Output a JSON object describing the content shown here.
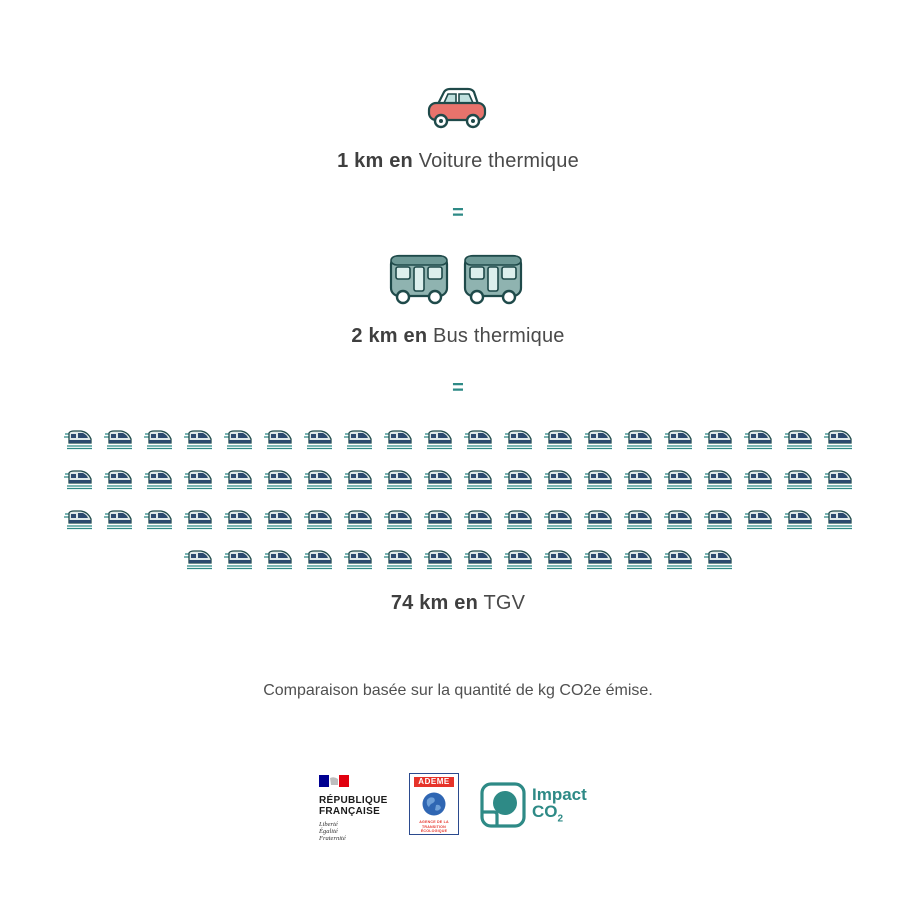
{
  "comparisons": [
    {
      "quantity": "1 km en",
      "mode": "Voiture thermique",
      "icon": "car-icon",
      "count": 1
    },
    {
      "quantity": "2 km en",
      "mode": "Bus thermique",
      "icon": "bus-icon",
      "count": 2
    },
    {
      "quantity": "74 km en",
      "mode": "TGV",
      "icon": "tgv-train-icon",
      "count": 74
    }
  ],
  "equals_sign": "=",
  "footnote": "Comparaison basée sur la quantité de kg CO2e émise.",
  "logos": {
    "republique": {
      "line1": "RÉPUBLIQUE",
      "line2": "FRANÇAISE",
      "motto1": "Liberté",
      "motto2": "Égalité",
      "motto3": "Fraternité"
    },
    "ademe": {
      "name": "ADEME",
      "tagline": "AGENCE DE LA TRANSITION ÉCOLOGIQUE"
    },
    "impact": {
      "word1": "Impact",
      "word2": "CO",
      "subscript": "2"
    }
  },
  "colors": {
    "car_body": "#e8736c",
    "teal_dark": "#1f6e6b",
    "teal_accent": "#2e8a86",
    "bus_body": "#8fb3b0",
    "train_navy": "#2b4a6e",
    "ademe_red": "#e6332a",
    "marianne_blue": "#000091"
  }
}
